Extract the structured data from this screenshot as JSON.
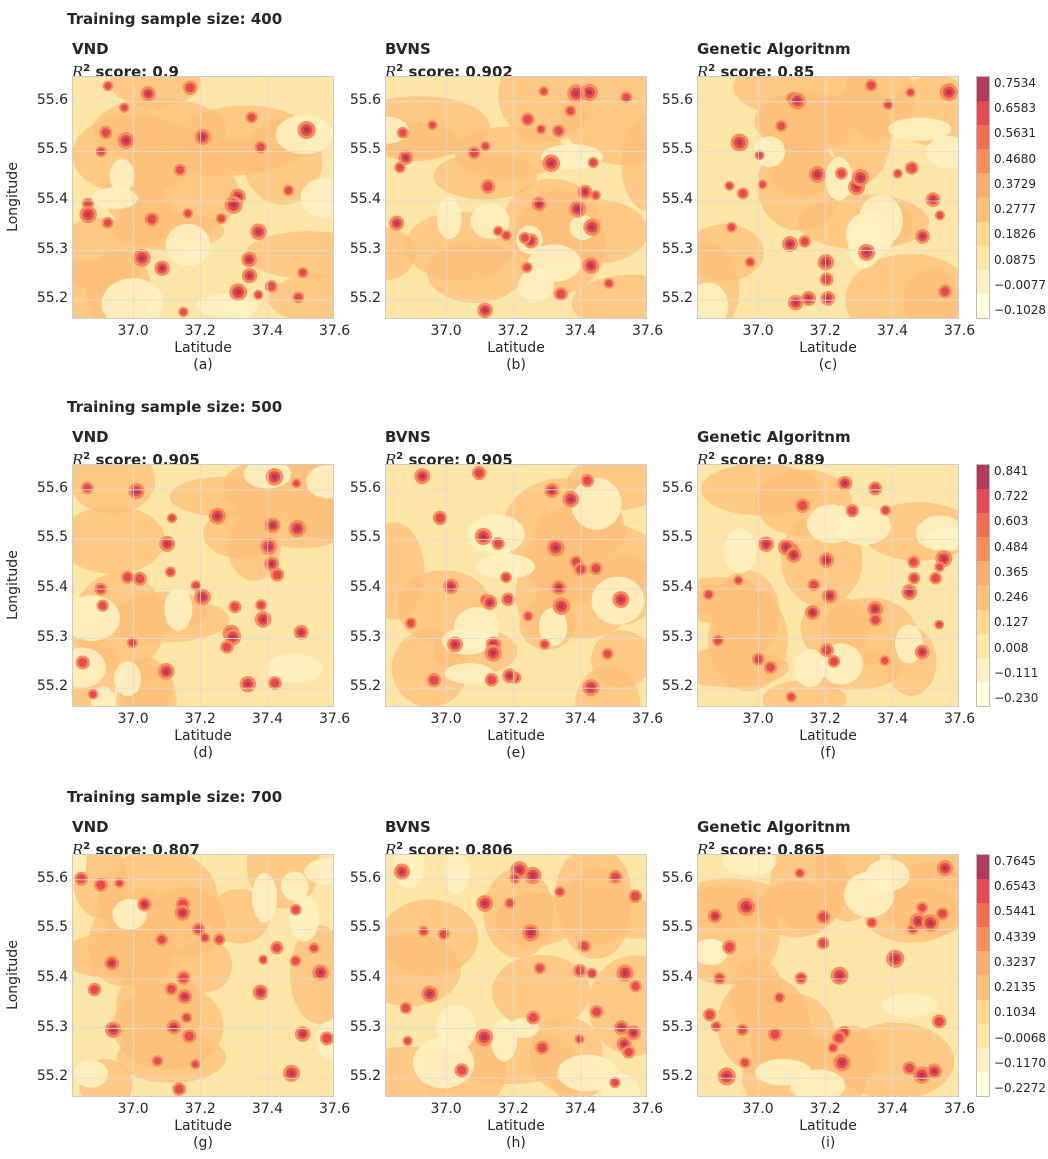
{
  "rows": [
    {
      "title": "Training sample size: 400",
      "panels": [
        {
          "method": "VND",
          "score": "0.9",
          "letter": "(a)"
        },
        {
          "method": "BVNS",
          "score": "0.902",
          "letter": "(b)"
        },
        {
          "method": "Genetic Algoritnm",
          "score": "0.85",
          "letter": "(c)"
        }
      ],
      "colorbar": [
        "0.7534",
        "0.6583",
        "0.5631",
        "0.4680",
        "0.3729",
        "0.2777",
        "0.1826",
        "0.0875",
        "−0.0077",
        "−0.1028"
      ]
    },
    {
      "title": "Training sample size: 500",
      "panels": [
        {
          "method": "VND",
          "score": "0.905",
          "letter": "(d)"
        },
        {
          "method": "BVNS",
          "score": "0.905",
          "letter": "(e)"
        },
        {
          "method": "Genetic Algoritnm",
          "score": "0.889",
          "letter": "(f)"
        }
      ],
      "colorbar": [
        "0.841",
        "0.722",
        "0.603",
        "0.484",
        "0.365",
        "0.246",
        "0.127",
        "0.008",
        "−0.111",
        "−0.230"
      ]
    },
    {
      "title": "Training sample size: 700",
      "panels": [
        {
          "method": "VND",
          "score": "0.807",
          "letter": "(g)"
        },
        {
          "method": "BVNS",
          "score": "0.806",
          "letter": "(h)"
        },
        {
          "method": "Genetic Algoritnm",
          "score": "0.865",
          "letter": "(i)"
        }
      ],
      "colorbar": [
        "0.7645",
        "0.6543",
        "0.5441",
        "0.4339",
        "0.3237",
        "0.2135",
        "0.1034",
        "−0.0068",
        "−0.1170",
        "−0.2272"
      ]
    }
  ],
  "score_prefix": "R",
  "score_sup": "2",
  "score_suffix": " score: ",
  "xlabel": "Latitude",
  "ylabel": "Longitude",
  "xticks": [
    "37.0",
    "37.2",
    "37.4",
    "37.6"
  ],
  "yticks": [
    "55.6",
    "55.5",
    "55.4",
    "55.3",
    "55.2"
  ],
  "colors": {
    "cbar_bands": [
      "#ffffe0",
      "#fff1c2",
      "#fee6a8",
      "#fed88f",
      "#fdbf7a",
      "#fcac6e",
      "#f98c5a",
      "#f26b55",
      "#e34a52",
      "#b33a5c"
    ]
  },
  "chart_data": {
    "type": "heatmap",
    "xlabel": "Latitude",
    "ylabel": "Longitude",
    "xlim": [
      36.82,
      37.6
    ],
    "ylim": [
      55.16,
      55.65
    ],
    "panels": [
      "(a)",
      "(b)",
      "(c)",
      "(d)",
      "(e)",
      "(f)",
      "(g)",
      "(h)",
      "(i)"
    ]
  }
}
